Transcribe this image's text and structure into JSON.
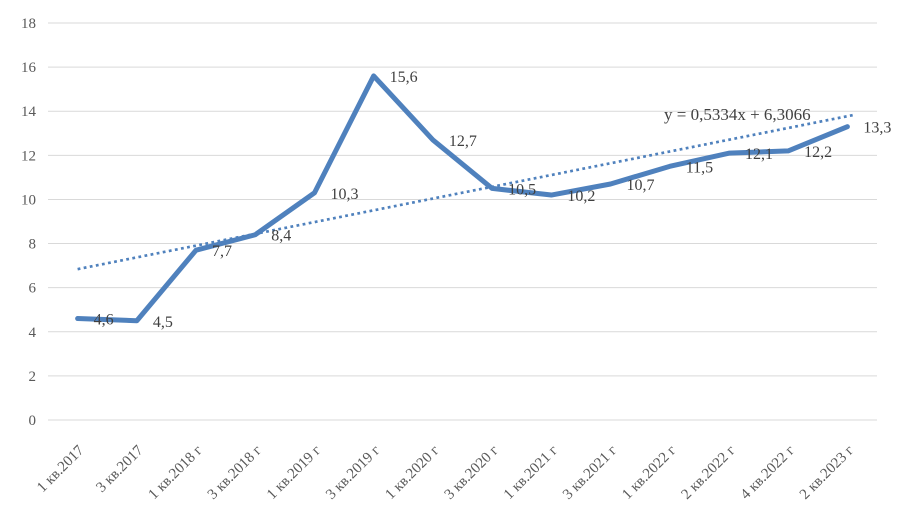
{
  "chart_data": {
    "type": "line",
    "categories": [
      "1 кв.2017",
      "3 кв.2017",
      "1 кв.2018 г",
      "3 кв.2018 г",
      "1 кв.2019 г",
      "3 кв.2019 г",
      "1 кв.2020 г",
      "3 кв.2020 г",
      "1 кв.2021 г",
      "3 кв.2021 г",
      "1 кв.2022 г",
      "2 кв.2022 г",
      "4 кв.2022 г",
      "2 кв.2023 г"
    ],
    "values": [
      4.6,
      4.5,
      7.7,
      8.4,
      10.3,
      15.6,
      12.7,
      10.5,
      10.2,
      10.7,
      11.5,
      12.1,
      12.2,
      13.3
    ],
    "value_labels": [
      "4,6",
      "4,5",
      "7,7",
      "8,4",
      "10,3",
      "15,6",
      "12,7",
      "10,5",
      "10,2",
      "10,7",
      "11,5",
      "12,1",
      "12,2",
      "13,3"
    ],
    "title": "",
    "xlabel": "",
    "ylabel": "",
    "ylim": [
      0,
      18
    ],
    "ytick_step": 2,
    "grid": "horizontal",
    "legend": "none",
    "trendline": {
      "equation": "y = 0,5334x + 6,3066",
      "slope": 0.5334,
      "intercept": 6.3066,
      "style": "dotted"
    },
    "colors": {
      "series": "#4F81BD",
      "trendline": "#4F81BD",
      "gridline": "#D9D9D9",
      "axis_text": "#595959",
      "data_label_text": "#404040",
      "equation_text": "#404040"
    }
  }
}
